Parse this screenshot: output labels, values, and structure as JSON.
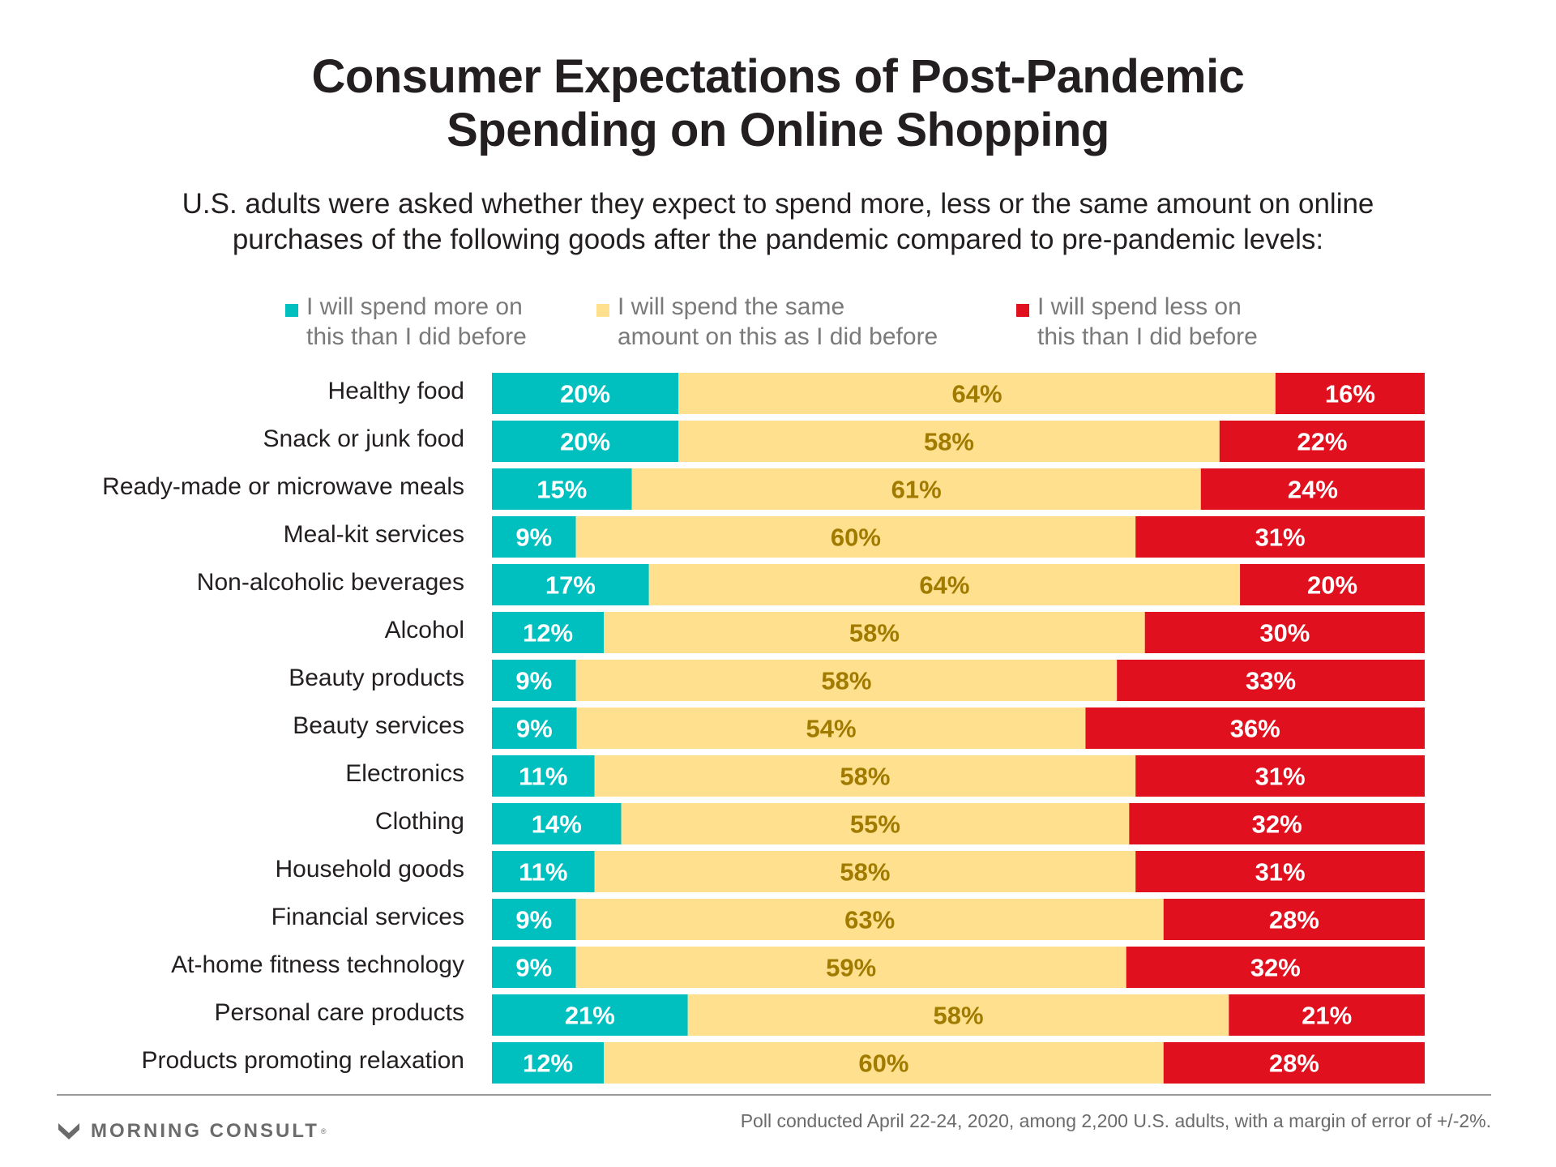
{
  "chart_data": {
    "type": "bar",
    "orientation": "horizontal",
    "stacked": true,
    "percent_stacked": true,
    "title": [
      "Consumer Expectations of Post-Pandemic",
      "Spending on Online Shopping"
    ],
    "subtitle": [
      "U.S. adults were asked whether they expect to spend more, less or the same amount on online",
      "purchases of the following goods after the pandemic compared to pre-pandemic levels:"
    ],
    "categories": [
      "Healthy food",
      "Snack or junk food",
      "Ready-made or microwave meals",
      "Meal-kit services",
      "Non-alcoholic beverages",
      "Alcohol",
      "Beauty products",
      "Beauty services",
      "Electronics",
      "Clothing",
      "Household goods",
      "Financial services",
      "At-home fitness technology",
      "Personal care products",
      "Products promoting relaxation"
    ],
    "series": [
      {
        "name": [
          "I will spend more on",
          "this than I did before"
        ],
        "color": "#00bfbf",
        "label_color": "#ffffff",
        "values": [
          20,
          20,
          15,
          9,
          17,
          12,
          9,
          9,
          11,
          14,
          11,
          9,
          9,
          21,
          12
        ]
      },
      {
        "name": [
          "I will spend the same",
          "amount on this as I did before"
        ],
        "color": "#ffe08f",
        "label_color": "#a07b00",
        "values": [
          64,
          58,
          61,
          60,
          64,
          58,
          58,
          54,
          58,
          55,
          58,
          63,
          59,
          58,
          60
        ]
      },
      {
        "name": [
          "I will spend less on",
          "this than I did before"
        ],
        "color": "#e0101e",
        "label_color": "#ffffff",
        "values": [
          16,
          22,
          24,
          31,
          20,
          30,
          33,
          36,
          31,
          32,
          31,
          28,
          32,
          21,
          28
        ]
      }
    ],
    "value_suffix": "%",
    "legend_position": "top",
    "grid": false
  },
  "footer": {
    "logo_text": "MORNING CONSULT",
    "logo_mark": "®",
    "footnote": "Poll conducted April 22-24, 2020, among 2,200 U.S. adults, with a margin of error of +/-2%."
  },
  "icons": {
    "logo": "morning-consult-chevron-icon"
  }
}
